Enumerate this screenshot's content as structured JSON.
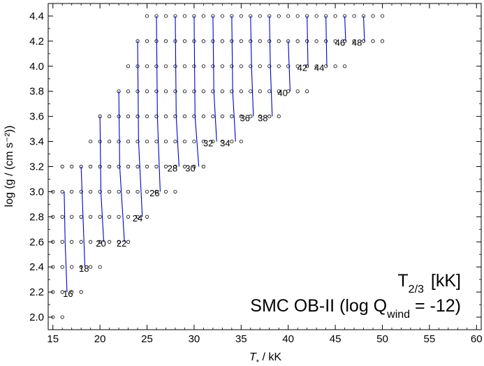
{
  "chart_data": {
    "type": "scatter",
    "xlabel_sym": "T",
    "xlabel_sub": "*",
    "xlabel_rest": " / kK",
    "ylabel": "log (g / (cm s⁻²))",
    "xlim": [
      14.5,
      60.5
    ],
    "ylim": [
      1.9,
      4.5
    ],
    "xticks": [
      15,
      20,
      25,
      30,
      35,
      40,
      45,
      50,
      55,
      60
    ],
    "yticks": [
      2.0,
      2.2,
      2.4,
      2.6,
      2.8,
      3.0,
      3.2,
      3.4,
      3.6,
      3.8,
      4.0,
      4.2,
      4.4
    ],
    "grid": false,
    "annotation_line1": "T₂⾃  [kK]",
    "annotation_main": "T",
    "annotation_sub": "2/3",
    "annotation_unit": "[kK]",
    "annotation_line2_pre": "SMC OB-II (log Q",
    "annotation_line2_sub": "wind",
    "annotation_line2_post": " = -12)",
    "grid_models": [
      {
        "y": 2.0,
        "x": [
          15,
          16
        ]
      },
      {
        "y": 2.2,
        "x": [
          15,
          16,
          17,
          18
        ]
      },
      {
        "y": 2.4,
        "x": [
          15,
          16,
          17,
          18,
          19,
          20
        ]
      },
      {
        "y": 2.6,
        "x": [
          15,
          16,
          17,
          18,
          19,
          20,
          21,
          22,
          23
        ]
      },
      {
        "y": 2.8,
        "x": [
          15,
          16,
          17,
          18,
          19,
          20,
          21,
          22,
          23,
          24,
          25
        ]
      },
      {
        "y": 3.0,
        "x": [
          15,
          16,
          17,
          18,
          19,
          20,
          21,
          22,
          23,
          24,
          25,
          26,
          27,
          28
        ]
      },
      {
        "y": 3.2,
        "x": [
          16,
          17,
          18,
          19,
          20,
          21,
          22,
          23,
          24,
          25,
          26,
          27,
          28,
          29,
          30,
          31
        ]
      },
      {
        "y": 3.4,
        "x": [
          19,
          20,
          21,
          22,
          23,
          24,
          25,
          26,
          27,
          28,
          29,
          30,
          31,
          32,
          33,
          34,
          35
        ]
      },
      {
        "y": 3.6,
        "x": [
          20,
          21,
          22,
          23,
          24,
          25,
          26,
          27,
          28,
          29,
          30,
          31,
          32,
          33,
          34,
          35,
          36,
          37,
          38,
          39
        ]
      },
      {
        "y": 3.8,
        "x": [
          22,
          23,
          24,
          25,
          26,
          27,
          28,
          29,
          30,
          31,
          32,
          33,
          34,
          35,
          36,
          37,
          38,
          39,
          40,
          41,
          42
        ]
      },
      {
        "y": 4.0,
        "x": [
          23,
          24,
          25,
          26,
          27,
          28,
          29,
          30,
          31,
          32,
          33,
          34,
          35,
          36,
          37,
          38,
          39,
          40,
          41,
          42,
          43,
          44,
          45,
          46
        ]
      },
      {
        "y": 4.2,
        "x": [
          24,
          25,
          26,
          27,
          28,
          29,
          30,
          31,
          32,
          33,
          34,
          35,
          36,
          37,
          38,
          39,
          40,
          41,
          42,
          43,
          44,
          45,
          46,
          47,
          48,
          49,
          50
        ]
      },
      {
        "y": 4.4,
        "x": [
          25,
          26,
          27,
          28,
          29,
          30,
          31,
          32,
          33,
          34,
          35,
          36,
          37,
          38,
          39,
          40,
          41,
          42,
          43,
          44,
          45,
          46,
          47,
          48,
          49,
          50
        ]
      }
    ],
    "contours": [
      {
        "label": "16",
        "color": "#0000cc",
        "label_at": [
          16.6,
          2.19
        ],
        "points": [
          [
            16.2,
            3.0
          ],
          [
            16.3,
            2.6
          ],
          [
            16.5,
            2.2
          ]
        ]
      },
      {
        "label": "18",
        "color": "#0000cc",
        "label_at": [
          18.3,
          2.39
        ],
        "points": [
          [
            18.0,
            3.2
          ],
          [
            18.2,
            2.8
          ],
          [
            18.4,
            2.4
          ]
        ]
      },
      {
        "label": "20",
        "color": "#0000cc",
        "label_at": [
          20.1,
          2.59
        ],
        "points": [
          [
            20.0,
            3.6
          ],
          [
            20.1,
            3.0
          ],
          [
            20.4,
            2.6
          ]
        ]
      },
      {
        "label": "22",
        "color": "#0000cc",
        "label_at": [
          22.3,
          2.59
        ],
        "points": [
          [
            22.0,
            3.8
          ],
          [
            22.1,
            3.2
          ],
          [
            22.6,
            2.6
          ]
        ]
      },
      {
        "label": "24",
        "color": "#0000cc",
        "label_at": [
          24.0,
          2.79
        ],
        "points": [
          [
            24.0,
            4.2
          ],
          [
            24.1,
            3.4
          ],
          [
            24.5,
            2.8
          ]
        ]
      },
      {
        "label": "26",
        "color": "#0000cc",
        "label_at": [
          25.8,
          2.99
        ],
        "points": [
          [
            26.0,
            4.4
          ],
          [
            26.1,
            3.6
          ],
          [
            26.4,
            3.0
          ]
        ]
      },
      {
        "label": "28",
        "color": "#0000cc",
        "label_at": [
          27.7,
          3.19
        ],
        "points": [
          [
            28.0,
            4.4
          ],
          [
            28.1,
            3.6
          ],
          [
            28.4,
            3.2
          ]
        ]
      },
      {
        "label": "30",
        "color": "#0000cc",
        "label_at": [
          29.6,
          3.19
        ],
        "points": [
          [
            30.0,
            4.4
          ],
          [
            30.1,
            3.6
          ],
          [
            30.5,
            3.2
          ]
        ]
      },
      {
        "label": "32",
        "color": "#0000cc",
        "label_at": [
          31.5,
          3.39
        ],
        "points": [
          [
            32.0,
            4.4
          ],
          [
            32.1,
            3.8
          ],
          [
            32.4,
            3.4
          ]
        ]
      },
      {
        "label": "34",
        "color": "#0000cc",
        "label_at": [
          33.3,
          3.39
        ],
        "points": [
          [
            34.0,
            4.4
          ],
          [
            34.1,
            3.8
          ],
          [
            34.4,
            3.4
          ]
        ]
      },
      {
        "label": "36",
        "color": "#0000cc",
        "label_at": [
          35.4,
          3.59
        ],
        "points": [
          [
            36.0,
            4.4
          ],
          [
            36.1,
            4.0
          ],
          [
            36.3,
            3.6
          ]
        ]
      },
      {
        "label": "38",
        "color": "#0000cc",
        "label_at": [
          37.3,
          3.59
        ],
        "points": [
          [
            38.0,
            4.4
          ],
          [
            38.1,
            4.0
          ],
          [
            38.3,
            3.6
          ]
        ]
      },
      {
        "label": "40",
        "color": "#0000cc",
        "label_at": [
          39.4,
          3.79
        ],
        "points": [
          [
            40.0,
            4.2
          ],
          [
            40.1,
            4.0
          ],
          [
            40.2,
            3.8
          ]
        ]
      },
      {
        "label": "42",
        "color": "#0000cc",
        "label_at": [
          41.5,
          3.99
        ],
        "points": [
          [
            42.0,
            4.4
          ],
          [
            42.1,
            4.0
          ]
        ]
      },
      {
        "label": "44",
        "color": "#0000cc",
        "label_at": [
          43.3,
          3.99
        ],
        "points": [
          [
            44.0,
            4.4
          ],
          [
            44.1,
            4.0
          ]
        ]
      },
      {
        "label": "46",
        "color": "#0000cc",
        "label_at": [
          45.5,
          4.19
        ],
        "points": [
          [
            46.0,
            4.4
          ],
          [
            46.1,
            4.2
          ]
        ]
      },
      {
        "label": "48",
        "color": "#0000cc",
        "label_at": [
          47.3,
          4.19
        ],
        "points": [
          [
            48.0,
            4.4
          ],
          [
            48.1,
            4.2
          ]
        ]
      }
    ]
  }
}
